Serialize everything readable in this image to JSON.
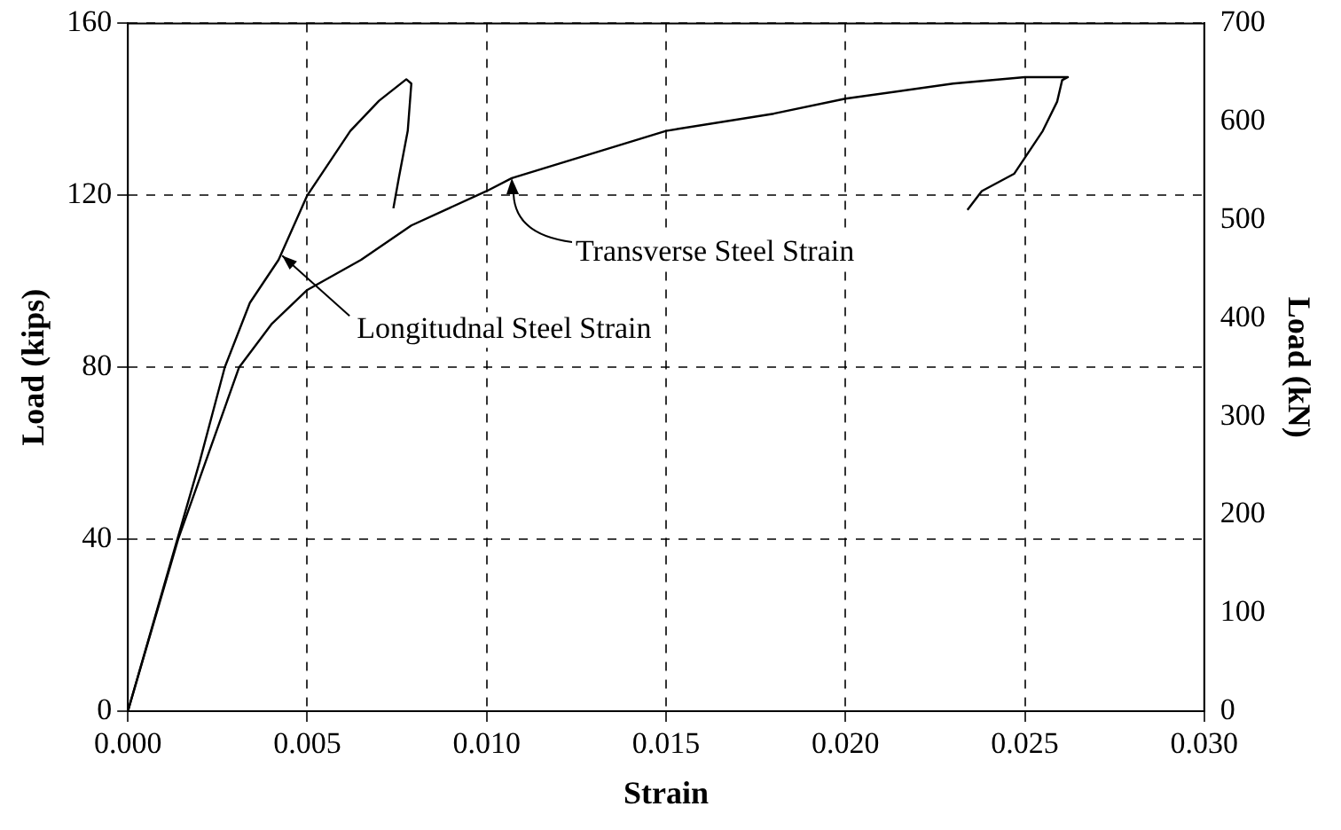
{
  "chart_data": {
    "type": "line",
    "xlabel": "Strain",
    "ylabel": "Load (kips)",
    "y2label": "Load (kN)",
    "xlim": [
      0,
      0.03
    ],
    "xticks": [
      {
        "value": 0,
        "label": "0.000"
      },
      {
        "value": 0.005,
        "label": "0.005"
      },
      {
        "value": 0.01,
        "label": "0.010"
      },
      {
        "value": 0.015,
        "label": "0.015"
      },
      {
        "value": 0.02,
        "label": "0.020"
      },
      {
        "value": 0.025,
        "label": "0.025"
      },
      {
        "value": 0.03,
        "label": "0.030"
      }
    ],
    "ylim": [
      0,
      160
    ],
    "yticks": [
      0,
      40,
      80,
      120,
      160
    ],
    "y2lim": [
      0,
      700
    ],
    "y2ticks": [
      0,
      100,
      200,
      300,
      400,
      500,
      600,
      700
    ],
    "grid": true,
    "legend": false,
    "marker": "none",
    "series": [
      {
        "color": "#000000",
        "x": [
          0,
          0.001,
          0.002,
          0.0027,
          0.0034,
          0.0042,
          0.005,
          0.0062,
          0.007,
          0.00776,
          0.0079,
          0.0078,
          0.00755,
          0.0074
        ],
        "values": [
          0,
          29,
          58,
          80,
          95,
          105,
          120,
          135,
          142,
          147,
          146,
          135,
          124,
          117
        ]
      },
      {
        "color": "#000000",
        "x": [
          0,
          0.0014,
          0.0031,
          0.004,
          0.005,
          0.0065,
          0.0079,
          0.01,
          0.0107,
          0.015,
          0.018,
          0.02,
          0.023,
          0.025,
          0.0262,
          0.02604,
          0.0259,
          0.0255,
          0.0247,
          0.0238,
          0.0234
        ],
        "values": [
          0,
          40,
          80,
          90,
          98,
          105,
          113,
          121,
          124,
          135,
          139,
          142.5,
          146,
          147.5,
          147.5,
          146.8,
          141.8,
          135,
          125,
          121,
          116.6
        ]
      }
    ],
    "annotations": [
      {
        "text": "Transverse Steel Strain",
        "x": 0.0107,
        "y": 124
      },
      {
        "text": "Longitudnal Steel Strain",
        "x": 0.0043,
        "y": 106
      }
    ]
  }
}
